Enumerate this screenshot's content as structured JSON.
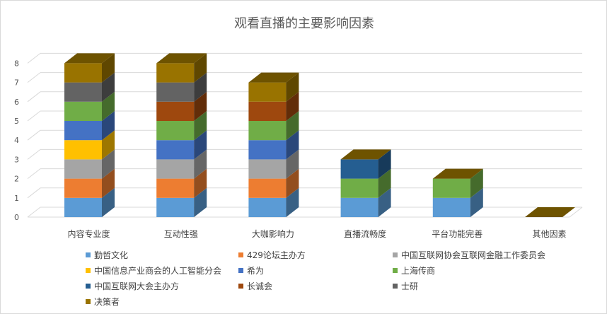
{
  "chart_data": {
    "type": "bar",
    "stacked": true,
    "three_d": true,
    "title": "观看直播的主要影响因素",
    "categories": [
      "内容专业度",
      "互动性强",
      "大咖影响力",
      "直播流畅度",
      "平台功能完善",
      "其他因素"
    ],
    "ylim": [
      0,
      8
    ],
    "yticks": [
      0,
      1,
      2,
      3,
      4,
      5,
      6,
      7,
      8
    ],
    "grid": true,
    "legend_position": "bottom",
    "series": [
      {
        "name": "勤哲文化",
        "color": "#5b9bd5",
        "values": [
          1,
          1,
          1,
          1,
          1,
          0
        ]
      },
      {
        "name": "429论坛主办方",
        "color": "#ed7d31",
        "values": [
          1,
          1,
          1,
          0,
          0,
          0
        ]
      },
      {
        "name": "中国互联网协会互联网金融工作委员会",
        "color": "#a5a5a5",
        "values": [
          1,
          1,
          1,
          0,
          0,
          0
        ]
      },
      {
        "name": "中国信息产业商会的人工智能分会",
        "color": "#ffc000",
        "values": [
          1,
          0,
          0,
          0,
          0,
          0
        ]
      },
      {
        "name": "希为",
        "color": "#4472c4",
        "values": [
          1,
          1,
          1,
          0,
          0,
          0
        ]
      },
      {
        "name": "上海传商",
        "color": "#70ad47",
        "values": [
          1,
          1,
          1,
          1,
          1,
          0
        ]
      },
      {
        "name": "中国互联网大会主办方",
        "color": "#255e91",
        "values": [
          0,
          0,
          0,
          1,
          0,
          0
        ]
      },
      {
        "name": "长诚会",
        "color": "#9e480e",
        "values": [
          0,
          1,
          1,
          0,
          0,
          0
        ]
      },
      {
        "name": "士研",
        "color": "#636363",
        "values": [
          1,
          1,
          0,
          0,
          0,
          0
        ]
      },
      {
        "name": "决策者",
        "color": "#997300",
        "values": [
          1,
          1,
          1,
          0,
          0,
          0
        ]
      }
    ]
  }
}
